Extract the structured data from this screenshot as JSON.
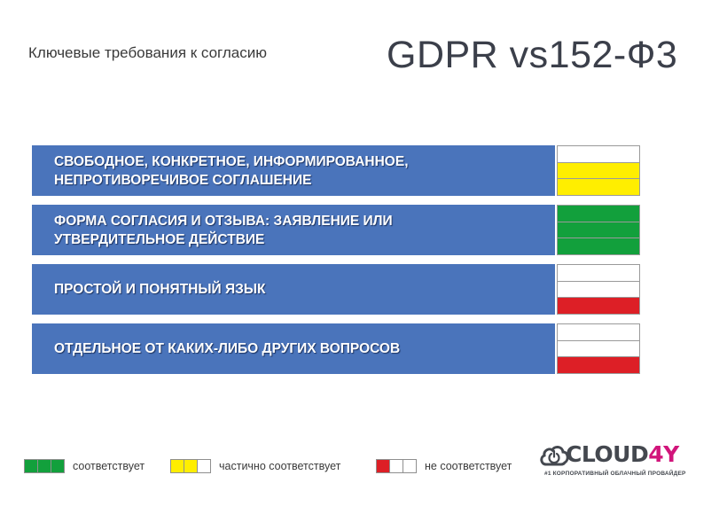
{
  "header": {
    "subtitle": "Ключевые требования к согласию",
    "title": "GDPR vs152-Ф3"
  },
  "colors": {
    "row_background": "#4a74bb",
    "green": "#12a03c",
    "yellow": "#ffee00",
    "red": "#dd1f26",
    "empty": "#ffffff",
    "logo_accent": "#d1157b"
  },
  "requirements": [
    {
      "label": "Свободное, конкретное, информированное,\nнепротиворечивое соглашение",
      "rating": "partial",
      "cells": [
        "empty",
        "yellow",
        "yellow"
      ]
    },
    {
      "label": "Форма согласия и отзыва: заявление или\nутвердительное действие",
      "rating": "full",
      "cells": [
        "green",
        "green",
        "green"
      ]
    },
    {
      "label": "Простой и понятный язык",
      "rating": "none",
      "cells": [
        "empty",
        "empty",
        "red"
      ]
    },
    {
      "label": "Отдельное от каких-либо других вопросов",
      "rating": "none",
      "cells": [
        "empty",
        "empty",
        "red"
      ]
    }
  ],
  "legend": [
    {
      "label": "соответствует",
      "cells": [
        "green",
        "green",
        "green"
      ]
    },
    {
      "label": "частично соответствует",
      "cells": [
        "yellow",
        "yellow",
        "empty"
      ]
    },
    {
      "label": "не соответствует",
      "cells": [
        "red",
        "empty",
        "empty"
      ]
    }
  ],
  "logo": {
    "icon": "cloud-power-icon",
    "name_main": "CLOUD",
    "name_accent": "4Y",
    "tagline": "#1 КОРПОРАТИВНЫЙ ОБЛАЧНЫЙ ПРОВАЙДЕР"
  }
}
